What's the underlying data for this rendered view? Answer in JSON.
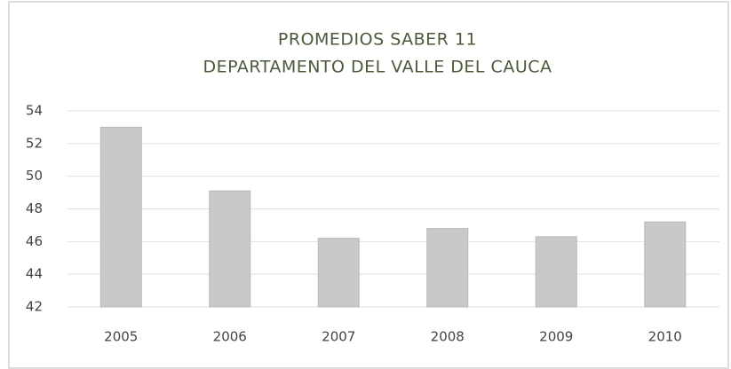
{
  "chart_data": {
    "type": "bar",
    "title": "PROMEDIOS SABER 11",
    "subtitle": "DEPARTAMENTO DEL VALLE DEL CAUCA",
    "categories": [
      "2005",
      "2006",
      "2007",
      "2008",
      "2009",
      "2010"
    ],
    "values": [
      53,
      49.1,
      46.2,
      46.8,
      46.3,
      47.2
    ],
    "color": "#c9c9c9",
    "ylim": [
      42,
      54
    ],
    "yticks": [
      42,
      44,
      46,
      48,
      50,
      52,
      54
    ],
    "grid": true
  }
}
